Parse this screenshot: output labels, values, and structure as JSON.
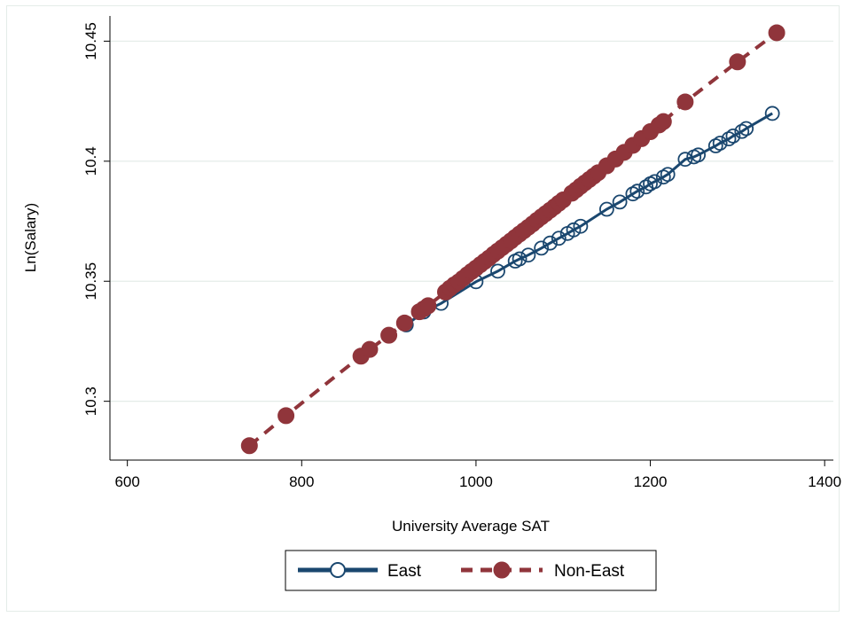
{
  "chart_data": {
    "type": "line",
    "xlabel": "University Average SAT",
    "ylabel": "Ln(Salary)",
    "xlim": [
      580,
      1410
    ],
    "ylim": [
      10.2755,
      10.4605
    ],
    "xticks": [
      600,
      800,
      1000,
      1200,
      1400
    ],
    "xtick_labels": [
      "600",
      "800",
      "1000",
      "1200",
      "1400"
    ],
    "yticks": [
      10.3,
      10.35,
      10.4,
      10.45
    ],
    "ytick_labels": [
      "10.3",
      "10.35",
      "10.4",
      "10.45"
    ],
    "grid": "horizontal",
    "legend_position": "bottom",
    "series": [
      {
        "name": "East",
        "color": "#1a476f",
        "marker": "hollow-circle",
        "line": "solid",
        "x": [
          920,
          940,
          960,
          1000,
          1025,
          1045,
          1050,
          1060,
          1075,
          1085,
          1095,
          1105,
          1112,
          1120,
          1150,
          1165,
          1180,
          1185,
          1195,
          1200,
          1205,
          1215,
          1220,
          1240,
          1250,
          1255,
          1275,
          1280,
          1290,
          1295,
          1305,
          1310,
          1340
        ],
        "y": [
          10.3318,
          10.3372,
          10.3408,
          10.3498,
          10.3542,
          10.3584,
          10.3593,
          10.3609,
          10.3638,
          10.3659,
          10.3679,
          10.3699,
          10.3714,
          10.3729,
          10.38,
          10.383,
          10.3864,
          10.3875,
          10.3893,
          10.3906,
          10.3915,
          10.3934,
          10.3945,
          10.4008,
          10.4018,
          10.4026,
          10.4064,
          10.4075,
          10.4093,
          10.4105,
          10.4124,
          10.4136,
          10.4199
        ]
      },
      {
        "name": "Non-East",
        "color": "#90353b",
        "marker": "filled-circle",
        "line": "dashed",
        "x": [
          740,
          782,
          868,
          878,
          900,
          918,
          935,
          940,
          945,
          965,
          970,
          975,
          980,
          985,
          990,
          995,
          1000,
          1005,
          1010,
          1015,
          1020,
          1025,
          1030,
          1035,
          1040,
          1045,
          1050,
          1055,
          1060,
          1065,
          1070,
          1075,
          1080,
          1085,
          1090,
          1095,
          1100,
          1110,
          1115,
          1120,
          1125,
          1130,
          1135,
          1140,
          1150,
          1160,
          1170,
          1180,
          1190,
          1200,
          1210,
          1215,
          1240,
          1300,
          1345
        ],
        "y": [
          10.2815,
          10.294,
          10.3188,
          10.3216,
          10.3275,
          10.3326,
          10.3373,
          10.3385,
          10.3398,
          10.3455,
          10.3471,
          10.3485,
          10.3497,
          10.3512,
          10.3527,
          10.3541,
          10.3555,
          10.3569,
          10.3583,
          10.3597,
          10.3612,
          10.3626,
          10.364,
          10.3654,
          10.3668,
          10.3683,
          10.3697,
          10.3711,
          10.3725,
          10.3739,
          10.3754,
          10.3768,
          10.3782,
          10.3796,
          10.381,
          10.3825,
          10.3839,
          10.3867,
          10.3881,
          10.3896,
          10.391,
          10.3924,
          10.3938,
          10.3952,
          10.3981,
          10.4009,
          10.4037,
          10.4066,
          10.4094,
          10.4123,
          10.4151,
          10.4165,
          10.4247,
          10.4414,
          10.4535
        ]
      }
    ]
  }
}
